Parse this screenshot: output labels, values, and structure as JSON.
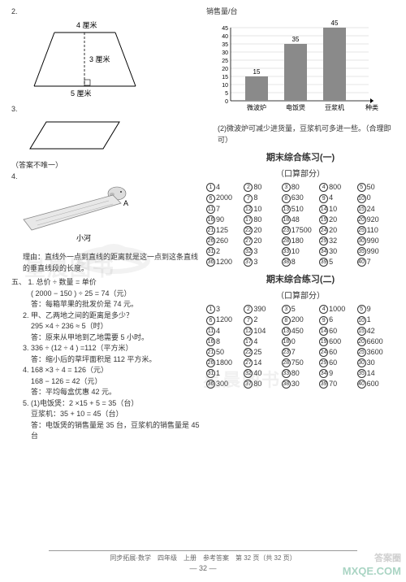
{
  "left": {
    "q2": {
      "num": "2.",
      "top": "4 厘米",
      "mid": "3 厘米",
      "bot": "5 厘米"
    },
    "q3": {
      "num": "3."
    },
    "note": "（答案不唯一）",
    "q4": {
      "num": "4.",
      "a": "A",
      "river": "小河",
      "reason": "理由：直线外一点到直线的距离就是这一点到这条直线的垂直线段的长度。"
    },
    "sec5": "五、",
    "p1": {
      "num": "1. ",
      "l1": "总价 ÷ 数量 = 单价",
      "l2": "( 2000 − 150 ) ÷ 25 = 74（元）",
      "l3": "答：每箱苹果的批发价是 74 元。"
    },
    "p2": {
      "num": "2. ",
      "l1": "甲、乙两地之间的距离是多少？",
      "l2": "295 ×4 ÷ 236 ≈ 5（时）",
      "l3": "答：原来从甲地到乙地需要 5 小时。"
    },
    "p3": {
      "num": "3. ",
      "l1": "336 ÷ (12 ÷ 4 ) =112（平方米）",
      "l2": "答：缩小后的草坪面积是 112 平方米。"
    },
    "p4": {
      "num": "4. ",
      "l1": "168 ×3 ÷ 4 = 126（元）",
      "l2": "168 − 126 = 42（元）",
      "l3": "答：平均每盒优惠 42 元。"
    },
    "p5": {
      "num": "5. ",
      "l1": "(1)电饭煲：2 ×15 + 5 = 35（台）",
      "l2": "豆浆机：35 + 10 = 45（台）",
      "l3": "答：电饭煲的销售量是 35 台，豆浆机的销售量是 45 台"
    }
  },
  "right": {
    "chart": {
      "ylabel": "销售量/台",
      "yticks": [
        "45",
        "40",
        "35",
        "30",
        "25",
        "20",
        "15",
        "10",
        "5",
        "0"
      ],
      "bars": [
        {
          "label": "微波炉",
          "val": 15,
          "txt": "15"
        },
        {
          "label": "电饭煲",
          "val": 35,
          "txt": "35"
        },
        {
          "label": "豆浆机",
          "val": 45,
          "txt": "45"
        }
      ],
      "xlabel": "种类",
      "barColor": "#8a8a8a",
      "gridColor": "#bbb"
    },
    "ans2": "(2)微波炉可减少进货量，豆浆机可多进一些。（合理即可）",
    "ex1": {
      "title": "期末综合练习(一)",
      "sub": "（口算部分）",
      "rows": [
        [
          "4",
          "80",
          "80",
          "800",
          "50"
        ],
        [
          "2000",
          "8",
          "630",
          "4",
          "0"
        ],
        [
          "7",
          "10",
          "510",
          "10",
          "24"
        ],
        [
          "90",
          "80",
          "48",
          "20",
          "920"
        ],
        [
          "125",
          "20",
          "17500",
          "20",
          "110"
        ],
        [
          "260",
          "20",
          "180",
          "32",
          "990"
        ],
        [
          "2",
          "3",
          "10",
          "30",
          "990"
        ],
        [
          "1200",
          "3",
          "8",
          "5",
          "7"
        ]
      ]
    },
    "ex2": {
      "title": "期末综合练习(二)",
      "sub": "（口算部分）",
      "rows": [
        [
          "3",
          "390",
          "5",
          "1000",
          "9"
        ],
        [
          "1200",
          "2",
          "200",
          "6",
          "1"
        ],
        [
          "4",
          "104",
          "450",
          "60",
          "42"
        ],
        [
          "8",
          "4",
          "0",
          "600",
          "6600"
        ],
        [
          "50",
          "25",
          "7",
          "60",
          "3600"
        ],
        [
          "1800",
          "14",
          "750",
          "60",
          "30"
        ],
        [
          "1",
          "40",
          "80",
          "9",
          "14"
        ],
        [
          "300",
          "80",
          "30",
          "70",
          "600"
        ]
      ]
    }
  },
  "footer": {
    "line": "同步拓展·数学　四年级　上册　参考答案　第 32 页（共 32 页）",
    "page": "— 32 —"
  },
  "wm": {
    "a": "星晨图书",
    "b": "星晨图书",
    "c": "MXQE.COM",
    "d": "答案圈"
  }
}
